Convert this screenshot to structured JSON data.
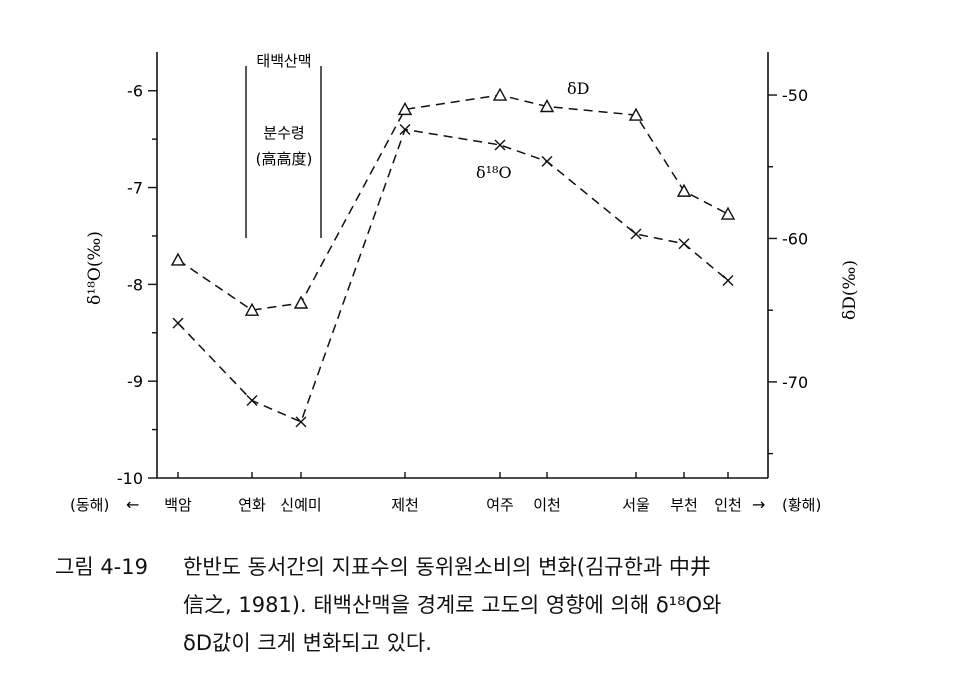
{
  "chart_data": {
    "type": "line",
    "categories": [
      "백암",
      "연화",
      "신예미",
      "제천",
      "여주",
      "이천",
      "서울",
      "부천",
      "인천"
    ],
    "x_side_labels": {
      "left": "(동해)",
      "left_arrow": "←",
      "right_arrow": "→",
      "right": "(황해)"
    },
    "series": [
      {
        "name": "δD",
        "axis": "right",
        "marker": "triangle",
        "values": [
          -61.5,
          -65,
          -64.5,
          -51,
          -50,
          -50.8,
          -51.4,
          -56.7,
          -58.3
        ]
      },
      {
        "name": "δ¹⁸O",
        "axis": "left",
        "marker": "cross",
        "values": [
          -8.4,
          -9.2,
          -9.42,
          -6.4,
          -6.56,
          -6.73,
          -7.48,
          -7.58,
          -7.96
        ]
      }
    ],
    "y_left": {
      "label": "δ¹⁸O(‰)",
      "ylim": [
        -10,
        -5.6
      ],
      "ticks": [
        "-6",
        "-7",
        "-8",
        "-9",
        "-10"
      ]
    },
    "y_right": {
      "label": "δD(‰)",
      "ylim": [
        -76.7,
        -47
      ],
      "ticks": [
        "-50",
        "-60",
        "-70"
      ]
    },
    "annotation": {
      "top": "태백산맥",
      "middle": "분수령",
      "bottom": "(高高度)"
    },
    "grid": false
  },
  "caption": {
    "figure_number": "그림 4-19",
    "line1": "한반도 동서간의 지표수의 동위원소비의 변화(김규한과 中井",
    "line2": "信之, 1981). 태백산맥을 경계로 고도의 영향에 의해 δ¹⁸O와",
    "line3": "δD값이 크게 변화되고 있다."
  }
}
